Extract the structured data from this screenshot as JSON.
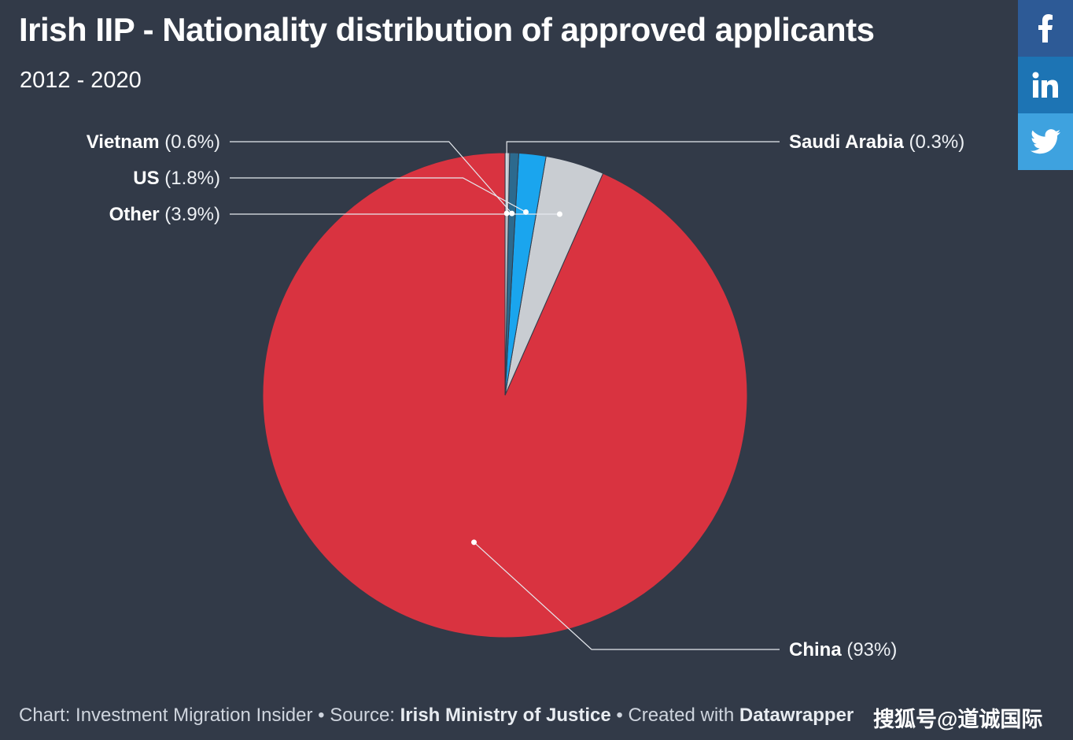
{
  "header": {
    "title": "Irish IIP - Nationality distribution of approved applicants",
    "subtitle": "2012 - 2020"
  },
  "share": {
    "facebook_icon": "facebook-icon",
    "linkedin_icon": "linkedin-icon",
    "twitter_icon": "twitter-icon"
  },
  "chart_data": {
    "type": "pie",
    "slices": [
      {
        "label": "China",
        "pct_text": "(93%)",
        "value": 93.0,
        "color": "#d93340"
      },
      {
        "label": "Other",
        "pct_text": "(3.9%)",
        "value": 3.9,
        "color": "#c9cdd2"
      },
      {
        "label": "US",
        "pct_text": "(1.8%)",
        "value": 1.8,
        "color": "#1aa5ee"
      },
      {
        "label": "Vietnam",
        "pct_text": "(0.6%)",
        "value": 0.6,
        "color": "#2c6a8e"
      },
      {
        "label": "Saudi Arabia",
        "pct_text": "(0.3%)",
        "value": 0.3,
        "color": "#b8bec6"
      }
    ],
    "legend": "none",
    "labels": "outside-with-leader-lines"
  },
  "footer": {
    "chart_prefix": "Chart: Investment Migration Insider",
    "separator": " • ",
    "source_prefix": "Source: ",
    "source_name": "Irish Ministry of Justice",
    "created_prefix": "Created with ",
    "tool_name": "Datawrapper"
  },
  "watermark": "搜狐号@道诚国际"
}
